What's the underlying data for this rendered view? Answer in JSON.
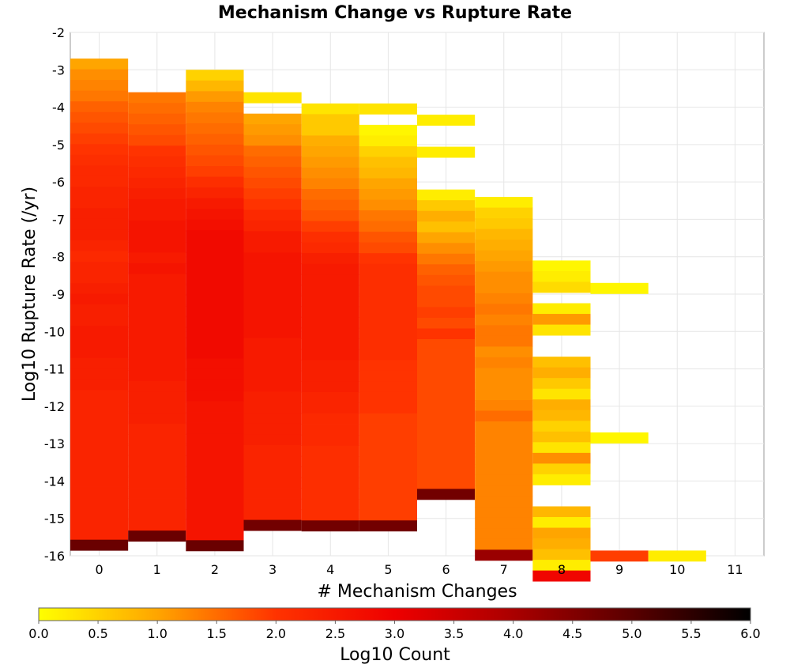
{
  "chart_data": {
    "type": "heatmap",
    "title": "Mechanism Change vs Rupture Rate",
    "xlabel": "# Mechanism Changes",
    "ylabel": "Log10 Rupture Rate (/yr)",
    "xlim": [
      -0.5,
      11.5
    ],
    "ylim": [
      -16,
      -2
    ],
    "x_ticks": [
      "0",
      "1",
      "2",
      "3",
      "4",
      "5",
      "6",
      "7",
      "8",
      "9",
      "10",
      "11"
    ],
    "y_ticks": [
      "-2",
      "-3",
      "-4",
      "-5",
      "-6",
      "-7",
      "-8",
      "-9",
      "-10",
      "-11",
      "-12",
      "-13",
      "-14",
      "-15",
      "-16"
    ],
    "bin_height": 0.286,
    "grid": true,
    "colorbar": {
      "label": "Log10 Count",
      "min": 0.0,
      "max": 6.0,
      "ticks": [
        "0.0",
        "0.5",
        "1.0",
        "1.5",
        "2.0",
        "2.5",
        "3.0",
        "3.5",
        "4.0",
        "4.5",
        "5.0",
        "5.5",
        "6.0"
      ],
      "colors": [
        "#ffff00",
        "#ffa500",
        "#ff3300",
        "#ee0000",
        "#aa0000",
        "#5a0000",
        "#000000"
      ]
    },
    "columns": [
      {
        "x": 0,
        "y_top": -2.7,
        "values": [
          1.0,
          1.2,
          1.3,
          1.4,
          1.6,
          1.7,
          1.8,
          1.9,
          2.0,
          2.1,
          2.2,
          2.2,
          2.3,
          2.3,
          2.4,
          2.4,
          2.4,
          2.3,
          2.2,
          2.3,
          2.3,
          2.4,
          2.5,
          2.4,
          2.4,
          2.5,
          2.5,
          2.5,
          2.4,
          2.4,
          2.4,
          2.3,
          2.3,
          2.3,
          2.3,
          2.3,
          2.3,
          2.3,
          2.3,
          2.3,
          2.3,
          2.3,
          2.3,
          2.3,
          2.3,
          4.8
        ]
      },
      {
        "x": 1,
        "y_top": -3.6,
        "values": [
          1.4,
          1.5,
          1.6,
          1.7,
          1.8,
          2.0,
          2.1,
          2.2,
          2.3,
          2.4,
          2.5,
          2.5,
          2.6,
          2.6,
          2.6,
          2.5,
          2.6,
          2.5,
          2.5,
          2.5,
          2.5,
          2.5,
          2.5,
          2.5,
          2.5,
          2.5,
          2.5,
          2.4,
          2.4,
          2.4,
          2.4,
          2.3,
          2.3,
          2.3,
          2.3,
          2.3,
          2.3,
          2.3,
          2.3,
          2.3,
          2.3,
          4.8
        ]
      },
      {
        "x": 2,
        "y_top": -3.0,
        "values": [
          0.5,
          0.8,
          1.1,
          1.3,
          1.4,
          1.5,
          1.6,
          1.7,
          1.8,
          1.9,
          2.1,
          2.3,
          2.5,
          2.6,
          2.7,
          2.8,
          2.8,
          2.8,
          2.8,
          2.8,
          2.8,
          2.8,
          2.8,
          2.8,
          2.8,
          2.8,
          2.8,
          2.7,
          2.7,
          2.7,
          2.7,
          2.6,
          2.6,
          2.6,
          2.6,
          2.6,
          2.6,
          2.6,
          2.6,
          2.6,
          2.6,
          2.6,
          2.6,
          2.6,
          4.8
        ]
      },
      {
        "x": 3,
        "y_top": -3.6,
        "values": [
          0.3,
          null,
          1.0,
          1.1,
          1.2,
          1.5,
          1.6,
          1.7,
          1.8,
          1.9,
          2.0,
          2.2,
          2.3,
          2.5,
          2.5,
          2.6,
          2.6,
          2.6,
          2.6,
          2.6,
          2.6,
          2.6,
          2.6,
          2.5,
          2.5,
          2.5,
          2.5,
          2.5,
          2.4,
          2.4,
          2.4,
          2.4,
          2.4,
          2.3,
          2.3,
          2.3,
          2.3,
          2.3,
          2.3,
          2.3,
          4.7
        ]
      },
      {
        "x": 4,
        "y_top": -3.9,
        "values": [
          0.3,
          0.6,
          0.6,
          0.9,
          1.0,
          1.1,
          1.2,
          1.3,
          1.5,
          1.6,
          1.7,
          1.9,
          2.1,
          2.2,
          2.4,
          2.5,
          2.5,
          2.5,
          2.5,
          2.5,
          2.5,
          2.5,
          2.5,
          2.5,
          2.4,
          2.4,
          2.4,
          2.3,
          2.3,
          2.2,
          2.2,
          2.2,
          2.1,
          2.1,
          2.1,
          2.1,
          2.1,
          2.1,
          2.1,
          4.7
        ]
      },
      {
        "x": 5,
        "y_top": -3.9,
        "values": [
          0.3,
          null,
          0.1,
          0.2,
          0.5,
          0.7,
          0.8,
          1.0,
          1.1,
          1.2,
          1.4,
          1.5,
          1.7,
          1.8,
          2.0,
          2.1,
          2.1,
          2.1,
          2.1,
          2.1,
          2.1,
          2.1,
          2.1,
          2.1,
          2.0,
          2.0,
          2.0,
          2.0,
          2.0,
          1.9,
          1.9,
          1.9,
          1.9,
          1.9,
          1.9,
          1.9,
          1.9,
          1.9,
          1.9,
          4.7
        ]
      },
      {
        "x": 6,
        "y_top": -4.2,
        "values": [
          0.2,
          null,
          null,
          0.2,
          null,
          null,
          null,
          0.2,
          0.6,
          0.9,
          0.7,
          1.0,
          1.2,
          1.4,
          1.6,
          1.7,
          1.8,
          1.8,
          1.9,
          1.8,
          2.0,
          1.8,
          1.8,
          1.8,
          1.8,
          1.8,
          1.8,
          1.8,
          1.8,
          1.8,
          1.8,
          1.8,
          1.8,
          1.8,
          1.8,
          4.7
        ]
      },
      {
        "x": 7,
        "y_top": -6.4,
        "values": [
          0.2,
          0.5,
          0.6,
          0.8,
          0.9,
          1.0,
          1.1,
          1.2,
          1.2,
          1.3,
          1.4,
          1.3,
          1.4,
          1.4,
          1.2,
          1.3,
          1.2,
          1.2,
          1.2,
          1.3,
          1.5,
          1.3,
          1.3,
          1.3,
          1.3,
          1.3,
          1.3,
          1.3,
          1.3,
          1.3,
          1.3,
          1.3,
          1.3,
          4.2
        ]
      },
      {
        "x": 8,
        "y_top": -8.1,
        "values": [
          0.1,
          0.2,
          0.4,
          null,
          0.2,
          1.1,
          0.3,
          null,
          null,
          0.7,
          0.9,
          0.6,
          0.3,
          0.9,
          0.8,
          0.5,
          0.7,
          0.3,
          1.2,
          0.5,
          0.2,
          null,
          null,
          0.8,
          0.2,
          1.0,
          0.9,
          0.7,
          0.2,
          2.9
        ]
      },
      {
        "x": 9,
        "y_top": -8.7,
        "values": [
          0.1
        ],
        "extra": [
          {
            "y_top": -12.7,
            "value": 0.1
          },
          {
            "y_top": -15.86,
            "value": 1.9
          }
        ]
      },
      {
        "x": 10,
        "y_top": -15.86,
        "values": [
          0.2
        ]
      }
    ]
  }
}
